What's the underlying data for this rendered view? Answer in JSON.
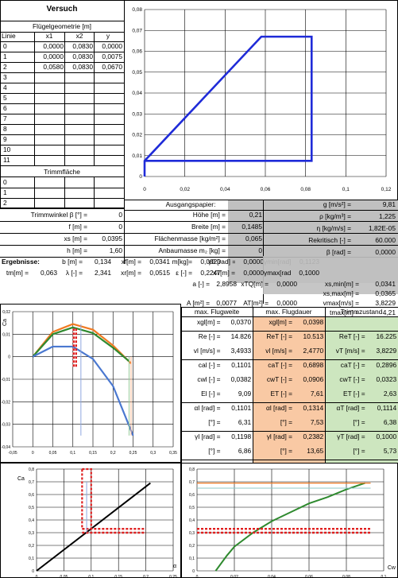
{
  "left_table": {
    "title": "Versuch",
    "geometry_header": "Flügelgeometrie [m]",
    "columns": [
      "Linie",
      "x1",
      "x2",
      "y"
    ],
    "rows": [
      {
        "linie": "0",
        "x1": "0,0000",
        "x2": "0,0830",
        "y": "0,0000"
      },
      {
        "linie": "1",
        "x1": "0,0000",
        "x2": "0,0830",
        "y": "0,0075"
      },
      {
        "linie": "2",
        "x1": "0,0580",
        "x2": "0,0830",
        "y": "0,0670"
      },
      {
        "linie": "3",
        "x1": "",
        "x2": "",
        "y": ""
      },
      {
        "linie": "4",
        "x1": "",
        "x2": "",
        "y": ""
      },
      {
        "linie": "5",
        "x1": "",
        "x2": "",
        "y": ""
      },
      {
        "linie": "6",
        "x1": "",
        "x2": "",
        "y": ""
      },
      {
        "linie": "7",
        "x1": "",
        "x2": "",
        "y": ""
      },
      {
        "linie": "8",
        "x1": "",
        "x2": "",
        "y": ""
      },
      {
        "linie": "9",
        "x1": "",
        "x2": "",
        "y": ""
      },
      {
        "linie": "10",
        "x1": "",
        "x2": "",
        "y": ""
      },
      {
        "linie": "11",
        "x1": "",
        "x2": "",
        "y": ""
      }
    ],
    "trim_header": "Trimmfläche",
    "trim_rows": [
      "0",
      "1",
      "2"
    ]
  },
  "params_left": [
    {
      "label": "Trimmwinkel β [°] =",
      "value": "0"
    },
    {
      "label": "f [m] =",
      "value": "0"
    },
    {
      "label": "xs [m] =",
      "value": "0,0395"
    },
    {
      "label": "h [m] =",
      "value": "1,60"
    }
  ],
  "params_mid_header": "Ausgangspapier:",
  "params_mid": [
    {
      "label": "Höhe [m] =",
      "value": "0,21"
    },
    {
      "label": "Breite [m] =",
      "value": "0,1485"
    },
    {
      "label": "Flächenmasse [kg/m²] =",
      "value": "0,065"
    },
    {
      "label": "Anbaumasse m₂ [kg] =",
      "value": "0"
    }
  ],
  "params_right": [
    {
      "label": "g [m/s²] =",
      "value": "9,81"
    },
    {
      "label": "ρ [kg/m³] =",
      "value": "1,225"
    },
    {
      "label": "η [kg/m/s] =",
      "value": "1,82E-05"
    },
    {
      "label": "Rekritisch [-] =",
      "value": "60.000"
    },
    {
      "label": "β [rad] =",
      "value": "0,0000"
    }
  ],
  "results": {
    "label": "Ergebnisse:",
    "row1": [
      {
        "label": "b [m] =",
        "value": "0,134"
      },
      {
        "label": "xf[m] =",
        "value": "0,0341"
      },
      {
        "label": "m[kg]=",
        "value": "0,0020"
      },
      {
        "label": "γ0 [rad] =",
        "value": "0,0000"
      },
      {
        "label": "γmin[rad] =",
        "value": "0,1123"
      }
    ],
    "row2": [
      {
        "label": "tm[m] =",
        "value": "0,063"
      },
      {
        "label": "λ [-] =",
        "value": "2,341"
      },
      {
        "label": "xr[m] =",
        "value": "0,0515"
      },
      {
        "label": "ε [-] =",
        "value": "0,2247"
      },
      {
        "label": "xT[m] =",
        "value": "0,0000"
      },
      {
        "label": "γmax[rad] =",
        "value": "0,1000"
      }
    ],
    "right_block": [
      {
        "label": "a [-] =",
        "value": "2,8958",
        "label2": "xTQ[m] =",
        "value2": "0,0000",
        "label3": "xs,min[m] =",
        "value3": "0,0341"
      },
      {
        "label": "",
        "value": "",
        "label2": "",
        "value2": "",
        "label3": "xs,max[m] =",
        "value3": "0,0365"
      },
      {
        "label": "A [m²] =",
        "value": "0,0077",
        "label2": "AT[m²] =",
        "value2": "0,0000",
        "label3": "vmax[m/s] =",
        "value3": "3,8229"
      },
      {
        "label": "",
        "value": "",
        "label2": "",
        "value2": "",
        "label3": "tmax[m] =",
        "value3": "4,21"
      }
    ]
  },
  "summary": {
    "headers": [
      "max. Flugweite",
      "max. Flugdauer",
      "Trimmzustand"
    ],
    "rows": [
      [
        {
          "l": "xgl[m] =",
          "v": "0,0370"
        },
        {
          "l": "xgl[m] =",
          "v": "0,0398"
        },
        {
          "l": "",
          "v": ""
        }
      ],
      [
        {
          "l": "Re [-] =",
          "v": "14.826"
        },
        {
          "l": "ReT [-] =",
          "v": "10.513"
        },
        {
          "l": "ReT [-] =",
          "v": "16.225"
        }
      ],
      [
        {
          "l": "vl [m/s] =",
          "v": "3,4933"
        },
        {
          "l": "vl [m/s] =",
          "v": "2,4770"
        },
        {
          "l": "vT [m/s] =",
          "v": "3,8229"
        }
      ],
      [
        {
          "l": "cal [-] =",
          "v": "0,1101"
        },
        {
          "l": "caT [-] =",
          "v": "0,6898"
        },
        {
          "l": "caT [-] =",
          "v": "0,2896"
        }
      ],
      [
        {
          "l": "cwl [-] =",
          "v": "0,0382"
        },
        {
          "l": "cwT [-] =",
          "v": "0,0906"
        },
        {
          "l": "cwT [-] =",
          "v": "0,0323"
        }
      ],
      [
        {
          "l": "El [-] =",
          "v": "9,09"
        },
        {
          "l": "ET [-] =",
          "v": "7,61"
        },
        {
          "l": "ET [-] =",
          "v": "2,63"
        }
      ],
      [
        {
          "l": "αl [rad] =",
          "v": "0,1101"
        },
        {
          "l": "αl [rad] =",
          "v": "0,1314"
        },
        {
          "l": "αT [rad] =",
          "v": "0,1114"
        }
      ],
      [
        {
          "l": "[°] =",
          "v": "6,31"
        },
        {
          "l": "[°] =",
          "v": "7,53"
        },
        {
          "l": "[°] =",
          "v": "6,38"
        }
      ],
      [
        {
          "l": "γl [rad] =",
          "v": "0,1198"
        },
        {
          "l": "γl [rad] =",
          "v": "0,2382"
        },
        {
          "l": "γT [rad] =",
          "v": "0,1000"
        }
      ],
      [
        {
          "l": "[°] =",
          "v": "6,86"
        },
        {
          "l": "[°] =",
          "v": "13,65"
        },
        {
          "l": "[°] =",
          "v": "5,73"
        }
      ]
    ]
  },
  "colors": {
    "gray": "#c0c0c0",
    "salmon": "#f9c9a4",
    "green": "#cde6bf",
    "blue_line": "#1f2bd8",
    "orange": "#f07a22",
    "dgreen": "#2f8a2f",
    "lblue": "#4a78d0",
    "red": "#e02020"
  },
  "chart_data": [
    {
      "type": "line",
      "title": "",
      "xlabel": "",
      "ylabel": "",
      "xlim": [
        0,
        0.12
      ],
      "ylim": [
        0,
        0.08
      ],
      "xticks": [
        "0",
        "0,02",
        "0,04",
        "0,06",
        "0,08",
        "0,1",
        "0,12"
      ],
      "yticks": [
        "0",
        "0,01",
        "0,02",
        "0,03",
        "0,04",
        "0,05",
        "0,06",
        "0,07",
        "0,08"
      ],
      "series": [
        {
          "x": [
            0,
            0.083,
            0.083,
            0.058,
            0.0,
            0.0
          ],
          "y": [
            0.0075,
            0.0075,
            0.067,
            0.067,
            0.0075,
            0.0
          ]
        }
      ]
    },
    {
      "type": "line",
      "title": "",
      "xlabel": "",
      "ylabel": "Ca",
      "xlim": [
        -0.05,
        0.35
      ],
      "ylim": [
        -0.04,
        0.02
      ],
      "xticks": [
        "-0,05",
        "0",
        "0,05",
        "0,1",
        "0,15",
        "0,2",
        "0,25",
        "0,3",
        "0,35"
      ],
      "yticks": [
        "-0,04",
        "-0,03",
        "-0,02",
        "-0,01",
        "0",
        "0,01",
        "0,02"
      ],
      "series": [
        {
          "x": [
            0,
            0.05,
            0.1,
            0.15,
            0.2,
            0.245
          ],
          "y": [
            0,
            0.011,
            0.0145,
            0.012,
            0.005,
            -0.003
          ]
        },
        {
          "x": [
            0,
            0.05,
            0.1,
            0.15,
            0.2,
            0.24
          ],
          "y": [
            0,
            0.01,
            0.013,
            0.0105,
            0.004,
            -0.002
          ]
        },
        {
          "x": [
            0,
            0.05,
            0.1,
            0.15,
            0.2,
            0.25
          ],
          "y": [
            0,
            0.0045,
            0.0045,
            -0.001,
            -0.013,
            -0.035
          ]
        }
      ]
    },
    {
      "type": "line",
      "title": "",
      "xlabel": "α",
      "ylabel": "Ca",
      "xlim": [
        0,
        0.3
      ],
      "ylim": [
        0,
        0.8
      ],
      "xticks": [
        "0",
        "0,05",
        "0,1",
        "0,15",
        "0,2",
        "0,25"
      ],
      "yticks": [
        "0",
        "0,1",
        "0,2",
        "0,3",
        "0,4",
        "0,5",
        "0,6",
        "0,7",
        "0,8"
      ],
      "series": [
        {
          "x": [
            0,
            0.25
          ],
          "y": [
            0,
            0.69
          ]
        }
      ]
    },
    {
      "type": "line",
      "title": "",
      "xlabel": "Cw",
      "ylabel": "",
      "xlim": [
        0,
        0.1
      ],
      "ylim": [
        0,
        0.8
      ],
      "xticks": [
        "0",
        "0,02",
        "0,04",
        "0,06",
        "0,08",
        "0,1"
      ],
      "yticks": [
        "0",
        "0,1",
        "0,2",
        "0,3",
        "0,4",
        "0,5",
        "0,6",
        "0,7",
        "0,8"
      ],
      "series": [
        {
          "x": [
            0.01,
            0.016,
            0.02,
            0.03,
            0.04,
            0.05,
            0.06,
            0.07,
            0.08,
            0.09
          ],
          "y": [
            0.0,
            0.12,
            0.19,
            0.3,
            0.39,
            0.46,
            0.53,
            0.58,
            0.64,
            0.69
          ]
        }
      ]
    }
  ]
}
